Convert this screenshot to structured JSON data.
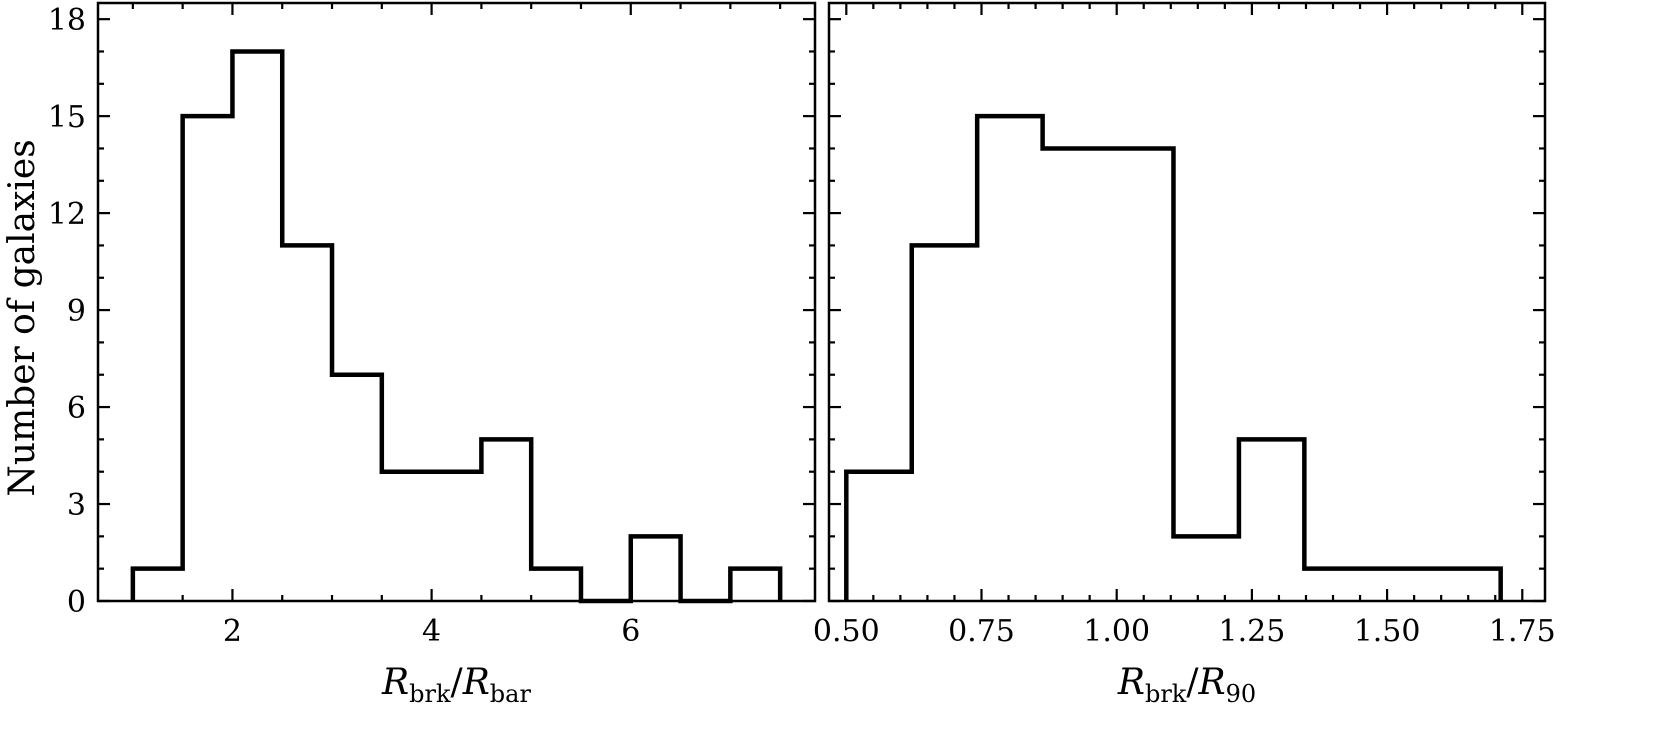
{
  "chart_data": [
    {
      "type": "histogram",
      "ylabel": "Number of galaxies",
      "xlabel": {
        "main_a": "R",
        "sub_a": "brk",
        "sep": "/",
        "main_b": "R",
        "sub_b": "bar"
      },
      "xlim": [
        0.65,
        7.85
      ],
      "ylim": [
        0,
        18.5
      ],
      "xticks": [
        2,
        4,
        6
      ],
      "xtick_labels": [
        "2",
        "4",
        "6"
      ],
      "xminor": [
        1,
        1.5,
        2.5,
        3,
        3.5,
        4.5,
        5,
        5.5,
        6.5,
        7,
        7.5
      ],
      "yticks": [
        0,
        3,
        6,
        9,
        12,
        15,
        18
      ],
      "ytick_labels": [
        "0",
        "3",
        "6",
        "9",
        "12",
        "15",
        "18"
      ],
      "yminor": [
        1,
        2,
        4,
        5,
        7,
        8,
        10,
        11,
        13,
        14,
        16,
        17
      ],
      "bin_edges": [
        1.0,
        1.5,
        2.0,
        2.5,
        3.0,
        3.5,
        4.0,
        4.5,
        5.0,
        5.5,
        6.0,
        6.5,
        7.0,
        7.5
      ],
      "counts": [
        1,
        15,
        17,
        11,
        7,
        4,
        4,
        5,
        1,
        0,
        2,
        0,
        1
      ]
    },
    {
      "type": "histogram",
      "ylabel": "",
      "xlabel": {
        "main_a": "R",
        "sub_a": "brk",
        "sep": "/",
        "main_b": "R",
        "sub_b": "90"
      },
      "xlim": [
        0.468,
        1.792
      ],
      "ylim": [
        0,
        18.5
      ],
      "xticks": [
        0.5,
        0.75,
        1.0,
        1.25,
        1.5,
        1.75
      ],
      "xtick_labels": [
        "0.50",
        "0.75",
        "1.00",
        "1.25",
        "1.50",
        "1.75"
      ],
      "xminor": [
        0.55,
        0.6,
        0.65,
        0.7,
        0.8,
        0.85,
        0.9,
        0.95,
        1.05,
        1.1,
        1.15,
        1.2,
        1.3,
        1.35,
        1.4,
        1.45,
        1.55,
        1.6,
        1.65,
        1.7
      ],
      "yticks": [
        0,
        3,
        6,
        9,
        12,
        15,
        18
      ],
      "ytick_labels": [],
      "yminor": [
        1,
        2,
        4,
        5,
        7,
        8,
        10,
        11,
        13,
        14,
        16,
        17
      ],
      "bin_edges": [
        0.5,
        0.621,
        0.742,
        0.863,
        0.984,
        1.105,
        1.226,
        1.347,
        1.468,
        1.589,
        1.71
      ],
      "counts": [
        4,
        11,
        15,
        14,
        14,
        2,
        5,
        1,
        1,
        1
      ]
    }
  ]
}
